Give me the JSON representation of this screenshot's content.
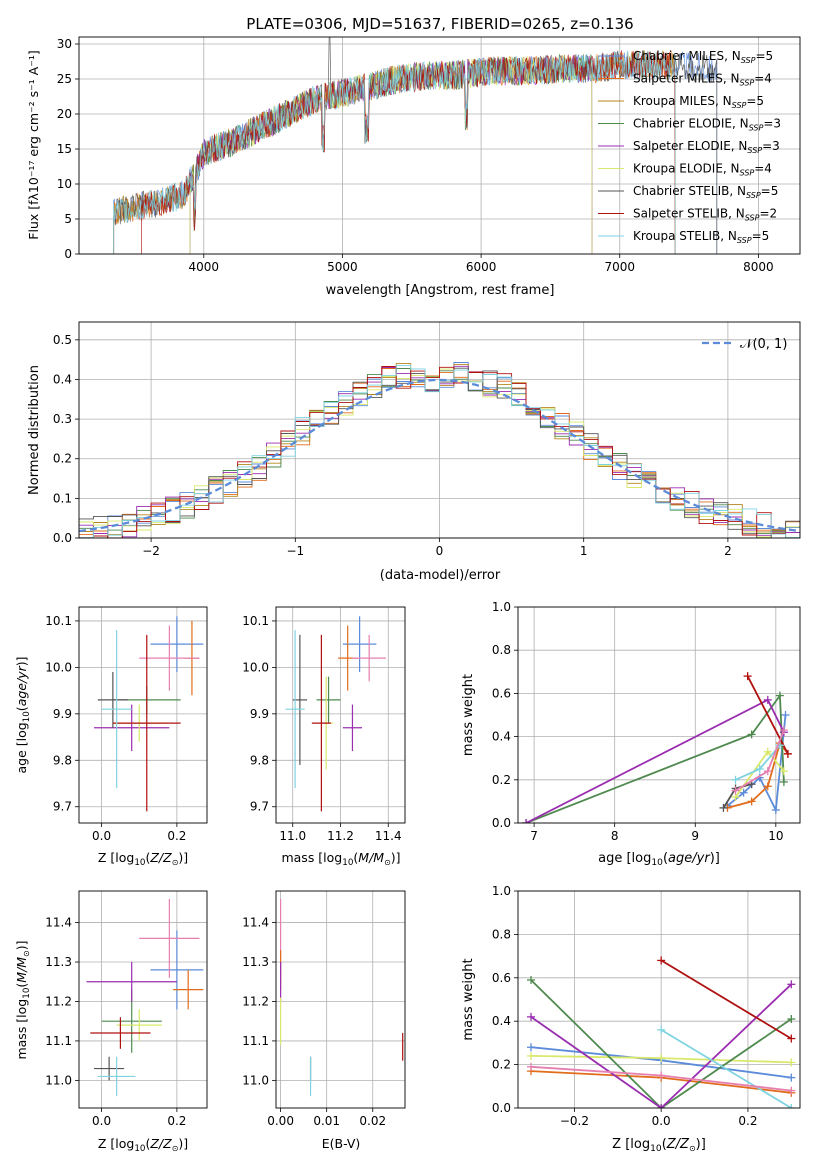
{
  "figure": {
    "title": "PLATE=0306, MJD=51637, FIBERID=0265, z=0.136"
  },
  "colors": {
    "chabrier_miles": "#5b8bd9",
    "salpeter_miles": "#e06c1c",
    "kroupa_miles": "#b5861f",
    "chabrier_elodie": "#4f8a4f",
    "salpeter_elodie": "#9a2db0",
    "kroupa_elodie": "#d9e86a",
    "chabrier_stelib": "#555555",
    "salpeter_stelib": "#b01010",
    "kroupa_stelib": "#7fd3e0",
    "pink": "#e67fb0",
    "normal": "#5b8bd9",
    "grid": "#b0b0b0"
  },
  "chart_data": [
    {
      "panel": "spectrum",
      "type": "line",
      "xlabel": "wavelength [Angstrom, rest frame]",
      "ylabel": "Flux [fλ10⁻¹⁷ erg cm⁻² s⁻¹ A⁻¹]",
      "xlim": [
        3100,
        8300
      ],
      "ylim": [
        0,
        31
      ],
      "xticks": [
        "4000",
        "5000",
        "6000",
        "7000",
        "8000"
      ],
      "yticks": [
        "0",
        "5",
        "10",
        "15",
        "20",
        "25",
        "30"
      ],
      "legend_position": "top-right",
      "continuum": [
        [
          3350,
          6
        ],
        [
          3450,
          6.5
        ],
        [
          3600,
          7
        ],
        [
          3700,
          7.5
        ],
        [
          3850,
          8.5
        ],
        [
          3950,
          12
        ],
        [
          4000,
          14.5
        ],
        [
          4200,
          16
        ],
        [
          4400,
          18
        ],
        [
          4600,
          20
        ],
        [
          4800,
          22
        ],
        [
          5000,
          23
        ],
        [
          5200,
          24
        ],
        [
          5400,
          25
        ],
        [
          5600,
          25.5
        ],
        [
          5800,
          25.5
        ],
        [
          6000,
          26
        ],
        [
          6200,
          26.2
        ],
        [
          6400,
          26.2
        ],
        [
          6600,
          26.5
        ],
        [
          6800,
          26.5
        ],
        [
          7000,
          27
        ],
        [
          7200,
          27
        ],
        [
          7400,
          27
        ],
        [
          7600,
          26.5
        ],
        [
          7700,
          26
        ]
      ],
      "series": [
        {
          "name": "Chabrier MILES, N_SSP=5",
          "label_main": "Chabrier MILES, N",
          "label_sub": "SSP",
          "label_tail": "=5",
          "x_range": [
            3350,
            7700
          ]
        },
        {
          "name": "Salpeter MILES, N_SSP=4",
          "label_main": "Salpeter MILES, N",
          "label_sub": "SSP",
          "label_tail": "=4",
          "x_range": [
            3350,
            7400
          ]
        },
        {
          "name": "Kroupa MILES, N_SSP=5",
          "label_main": "Kroupa MILES, N",
          "label_sub": "SSP",
          "label_tail": "=5",
          "x_range": [
            3350,
            7400
          ]
        },
        {
          "name": "Chabrier ELODIE, N_SSP=3",
          "label_main": "Chabrier ELODIE, N",
          "label_sub": "SSP",
          "label_tail": "=3",
          "x_range": [
            3900,
            6800
          ]
        },
        {
          "name": "Salpeter ELODIE, N_SSP=3",
          "label_main": "Salpeter ELODIE, N",
          "label_sub": "SSP",
          "label_tail": "=3",
          "x_range": [
            3900,
            6800
          ]
        },
        {
          "name": "Kroupa ELODIE, N_SSP=4",
          "label_main": "Kroupa ELODIE, N",
          "label_sub": "SSP",
          "label_tail": "=4",
          "x_range": [
            3900,
            6800
          ]
        },
        {
          "name": "Chabrier STELIB, N_SSP=5",
          "label_main": "Chabrier STELIB, N",
          "label_sub": "SSP",
          "label_tail": "=5",
          "x_range": [
            3350,
            7700
          ]
        },
        {
          "name": "Salpeter STELIB, N_SSP=2",
          "label_main": "Salpeter STELIB, N",
          "label_sub": "SSP",
          "label_tail": "=2",
          "x_range": [
            3550,
            7400
          ]
        },
        {
          "name": "Kroupa STELIB, N_SSP=5",
          "label_main": "Kroupa STELIB, N",
          "label_sub": "SSP",
          "label_tail": "=5",
          "x_range": [
            3350,
            7400
          ]
        }
      ]
    },
    {
      "panel": "residuals",
      "type": "area",
      "xlabel": "(data-model)/error",
      "ylabel": "Normed distribution",
      "xlim": [
        -2.5,
        2.5
      ],
      "ylim": [
        0,
        0.545
      ],
      "xticks": [
        "−2",
        "−1",
        "0",
        "1",
        "2"
      ],
      "yticks": [
        "0.0",
        "0.1",
        "0.2",
        "0.3",
        "0.4",
        "0.5"
      ],
      "legend_position": "top-right",
      "normal_label": "𝒩(0, 1)",
      "bins": 50,
      "histogram_profile": [
        0.019,
        0.022,
        0.028,
        0.035,
        0.045,
        0.058,
        0.07,
        0.085,
        0.1,
        0.12,
        0.14,
        0.16,
        0.18,
        0.21,
        0.24,
        0.27,
        0.3,
        0.32,
        0.34,
        0.36,
        0.38,
        0.4,
        0.41,
        0.41,
        0.4,
        0.4,
        0.41,
        0.4,
        0.39,
        0.38,
        0.36,
        0.34,
        0.31,
        0.28,
        0.26,
        0.23,
        0.2,
        0.18,
        0.16,
        0.14,
        0.12,
        0.1,
        0.085,
        0.07,
        0.06,
        0.05,
        0.04,
        0.033,
        0.026,
        0.02
      ]
    },
    {
      "panel": "age_vs_Z",
      "type": "scatter",
      "xlabel_text": "Z [log",
      "ylabel_text": "age  [log",
      "xlim": [
        -0.06,
        0.28
      ],
      "ylim": [
        9.665,
        10.13
      ],
      "xticks": [
        "0.0",
        "0.2"
      ],
      "yticks": [
        "9.7",
        "9.8",
        "9.9",
        "10.0",
        "10.1"
      ],
      "points": [
        {
          "x": 0.2,
          "y": 10.05,
          "xerr": 0.07,
          "yerr": 0.06,
          "c": "chabrier_miles"
        },
        {
          "x": 0.24,
          "y": 10.02,
          "xerr": 0.02,
          "yerr": 0.08,
          "c": "salpeter_miles"
        },
        {
          "x": 0.18,
          "y": 10.02,
          "xerr": 0.08,
          "yerr": 0.07,
          "c": "pink"
        },
        {
          "x": 0.12,
          "y": 9.93,
          "xerr": 0.09,
          "yerr": 0.03,
          "c": "chabrier_elodie"
        },
        {
          "x": 0.08,
          "y": 9.87,
          "xerr": 0.1,
          "yerr": 0.05,
          "c": "salpeter_elodie"
        },
        {
          "x": 0.1,
          "y": 9.88,
          "xerr": 0.07,
          "yerr": 0.04,
          "c": "kroupa_elodie"
        },
        {
          "x": 0.03,
          "y": 9.93,
          "xerr": 0.04,
          "yerr": 0.06,
          "c": "chabrier_stelib"
        },
        {
          "x": 0.12,
          "y": 9.88,
          "xerr": 0.09,
          "yerr": 0.19,
          "c": "salpeter_stelib"
        },
        {
          "x": 0.04,
          "y": 9.91,
          "xerr": 0.04,
          "yerr": 0.17,
          "c": "kroupa_stelib"
        }
      ]
    },
    {
      "panel": "age_vs_mass",
      "type": "scatter",
      "xlabel_text": "mass [log",
      "xlim": [
        10.93,
        11.47
      ],
      "ylim": [
        9.665,
        10.13
      ],
      "xticks": [
        "11.0",
        "11.2",
        "11.4"
      ],
      "yticks": [
        "9.7",
        "9.8",
        "9.9",
        "10.0",
        "10.1"
      ],
      "points": [
        {
          "x": 11.28,
          "y": 10.05,
          "xerr": 0.07,
          "yerr": 0.06,
          "c": "chabrier_miles"
        },
        {
          "x": 11.23,
          "y": 10.02,
          "xerr": 0.04,
          "yerr": 0.07,
          "c": "salpeter_miles"
        },
        {
          "x": 11.32,
          "y": 10.02,
          "xerr": 0.07,
          "yerr": 0.05,
          "c": "pink"
        },
        {
          "x": 11.15,
          "y": 9.93,
          "xerr": 0.05,
          "yerr": 0.05,
          "c": "chabrier_elodie"
        },
        {
          "x": 11.25,
          "y": 9.87,
          "xerr": 0.04,
          "yerr": 0.05,
          "c": "salpeter_elodie"
        },
        {
          "x": 11.14,
          "y": 9.88,
          "xerr": 0.03,
          "yerr": 0.1,
          "c": "kroupa_elodie"
        },
        {
          "x": 11.03,
          "y": 9.93,
          "xerr": 0.03,
          "yerr": 0.14,
          "c": "chabrier_stelib"
        },
        {
          "x": 11.12,
          "y": 9.88,
          "xerr": 0.04,
          "yerr": 0.19,
          "c": "salpeter_stelib"
        },
        {
          "x": 11.01,
          "y": 9.91,
          "xerr": 0.04,
          "yerr": 0.17,
          "c": "kroupa_stelib"
        }
      ]
    },
    {
      "panel": "weight_vs_age",
      "type": "line",
      "xlabel_text": "age  [log",
      "ylabel": "mass weight",
      "xlim": [
        6.8,
        10.3
      ],
      "ylim": [
        0,
        1
      ],
      "xticks": [
        "7",
        "8",
        "9",
        "10"
      ],
      "yticks": [
        "0.0",
        "0.2",
        "0.4",
        "0.6",
        "0.8",
        "1.0"
      ],
      "series": [
        {
          "c": "chabrier_miles",
          "pts": [
            [
              9.4,
              0.08
            ],
            [
              9.6,
              0.14
            ],
            [
              9.8,
              0.21
            ],
            [
              10.0,
              0.06
            ],
            [
              10.12,
              0.5
            ]
          ]
        },
        {
          "c": "salpeter_miles",
          "pts": [
            [
              9.4,
              0.07
            ],
            [
              9.7,
              0.1
            ],
            [
              9.9,
              0.17
            ],
            [
              10.05,
              0.37
            ],
            [
              10.15,
              0.32
            ]
          ]
        },
        {
          "c": "chabrier_elodie",
          "pts": [
            [
              6.9,
              0.0
            ],
            [
              9.7,
              0.41
            ],
            [
              10.05,
              0.59
            ],
            [
              10.1,
              0.19
            ]
          ]
        },
        {
          "c": "salpeter_elodie",
          "pts": [
            [
              6.9,
              0.0
            ],
            [
              9.9,
              0.57
            ],
            [
              10.1,
              0.42
            ]
          ]
        },
        {
          "c": "kroupa_elodie",
          "pts": [
            [
              9.5,
              0.12
            ],
            [
              9.9,
              0.33
            ],
            [
              10.1,
              0.24
            ]
          ]
        },
        {
          "c": "salpeter_stelib",
          "pts": [
            [
              9.65,
              0.68
            ],
            [
              10.15,
              0.32
            ]
          ]
        },
        {
          "c": "chabrier_stelib",
          "pts": [
            [
              9.35,
              0.07
            ],
            [
              9.5,
              0.16
            ],
            [
              9.7,
              0.18
            ]
          ]
        },
        {
          "c": "kroupa_stelib",
          "pts": [
            [
              9.5,
              0.2
            ],
            [
              9.8,
              0.25
            ],
            [
              10.05,
              0.36
            ]
          ]
        },
        {
          "c": "pink",
          "pts": [
            [
              9.5,
              0.15
            ],
            [
              9.9,
              0.24
            ],
            [
              10.1,
              0.43
            ]
          ]
        }
      ]
    },
    {
      "panel": "mass_vs_Z",
      "type": "scatter",
      "xlabel_text": "Z [log",
      "ylabel_text": "mass [log",
      "xlim": [
        -0.06,
        0.28
      ],
      "ylim": [
        10.93,
        11.48
      ],
      "xticks": [
        "0.0",
        "0.2"
      ],
      "yticks": [
        "11.0",
        "11.1",
        "11.2",
        "11.3",
        "11.4"
      ],
      "points": [
        {
          "x": 0.2,
          "y": 11.28,
          "xerr": 0.07,
          "yerr": 0.1,
          "c": "chabrier_miles"
        },
        {
          "x": 0.23,
          "y": 11.23,
          "xerr": 0.04,
          "yerr": 0.05,
          "c": "salpeter_miles"
        },
        {
          "x": 0.18,
          "y": 11.36,
          "xerr": 0.08,
          "yerr": 0.1,
          "c": "pink"
        },
        {
          "x": 0.08,
          "y": 11.15,
          "xerr": 0.08,
          "yerr": 0.08,
          "c": "chabrier_elodie"
        },
        {
          "x": 0.08,
          "y": 11.25,
          "xerr": 0.12,
          "yerr": 0.05,
          "c": "salpeter_elodie"
        },
        {
          "x": 0.1,
          "y": 11.14,
          "xerr": 0.06,
          "yerr": 0.04,
          "c": "kroupa_elodie"
        },
        {
          "x": 0.02,
          "y": 11.03,
          "xerr": 0.04,
          "yerr": 0.03,
          "c": "chabrier_stelib"
        },
        {
          "x": 0.05,
          "y": 11.12,
          "xerr": 0.08,
          "yerr": 0.04,
          "c": "salpeter_stelib"
        },
        {
          "x": 0.04,
          "y": 11.01,
          "xerr": 0.05,
          "yerr": 0.05,
          "c": "kroupa_stelib"
        }
      ]
    },
    {
      "panel": "mass_vs_ebv",
      "type": "scatter",
      "xlabel": "E(B-V)",
      "xlim": [
        -0.001,
        0.027
      ],
      "ylim": [
        10.93,
        11.48
      ],
      "xticks": [
        "0.00",
        "0.01",
        "0.02"
      ],
      "yticks": [
        "11.0",
        "11.1",
        "11.2",
        "11.3",
        "11.4"
      ],
      "points": [
        {
          "x": 0.0,
          "y": 11.36,
          "xerr": 0,
          "yerr": 0.1,
          "c": "pink"
        },
        {
          "x": 0.0,
          "y": 11.28,
          "xerr": 0,
          "yerr": 0.05,
          "c": "salpeter_miles"
        },
        {
          "x": 0.0,
          "y": 11.25,
          "xerr": 0,
          "yerr": 0.05,
          "c": "salpeter_elodie"
        },
        {
          "x": 0.0,
          "y": 11.15,
          "xerr": 0,
          "yerr": 0.06,
          "c": "kroupa_elodie"
        },
        {
          "x": 0.0065,
          "y": 11.03,
          "xerr": 0,
          "yerr": 0.03,
          "c": "chabrier_stelib"
        },
        {
          "x": 0.0065,
          "y": 11.01,
          "xerr": 0,
          "yerr": 0.05,
          "c": "kroupa_stelib"
        },
        {
          "x": 0.0265,
          "y": 11.085,
          "xerr": 0,
          "yerr": 0.035,
          "c": "salpeter_stelib"
        }
      ]
    },
    {
      "panel": "weight_vs_Z",
      "type": "line",
      "xlabel_text": "Z [log",
      "ylabel": "mass weight",
      "xlim": [
        -0.33,
        0.32
      ],
      "ylim": [
        0,
        1
      ],
      "xticks": [
        "−0.2",
        "0.0",
        "0.2"
      ],
      "yticks": [
        "0.0",
        "0.2",
        "0.4",
        "0.6",
        "0.8",
        "1.0"
      ],
      "series": [
        {
          "c": "chabrier_miles",
          "pts": [
            [
              -0.3,
              0.28
            ],
            [
              0.0,
              0.22
            ],
            [
              0.3,
              0.14
            ]
          ]
        },
        {
          "c": "salpeter_miles",
          "pts": [
            [
              -0.3,
              0.17
            ],
            [
              0.0,
              0.14
            ],
            [
              0.3,
              0.07
            ]
          ]
        },
        {
          "c": "kroupa_elodie",
          "pts": [
            [
              -0.3,
              0.24
            ],
            [
              0.0,
              0.23
            ],
            [
              0.3,
              0.21
            ]
          ]
        },
        {
          "c": "chabrier_elodie",
          "pts": [
            [
              -0.3,
              0.59
            ],
            [
              0.0,
              0.0
            ],
            [
              0.3,
              0.41
            ]
          ]
        },
        {
          "c": "salpeter_elodie",
          "pts": [
            [
              -0.3,
              0.42
            ],
            [
              0.0,
              0.0
            ],
            [
              0.3,
              0.57
            ]
          ]
        },
        {
          "c": "salpeter_stelib",
          "pts": [
            [
              0.0,
              0.68
            ],
            [
              0.3,
              0.32
            ]
          ]
        },
        {
          "c": "kroupa_stelib",
          "pts": [
            [
              0.0,
              0.36
            ],
            [
              0.3,
              0.0
            ]
          ]
        },
        {
          "c": "pink",
          "pts": [
            [
              -0.3,
              0.19
            ],
            [
              0.0,
              0.15
            ],
            [
              0.3,
              0.08
            ]
          ]
        }
      ]
    }
  ]
}
